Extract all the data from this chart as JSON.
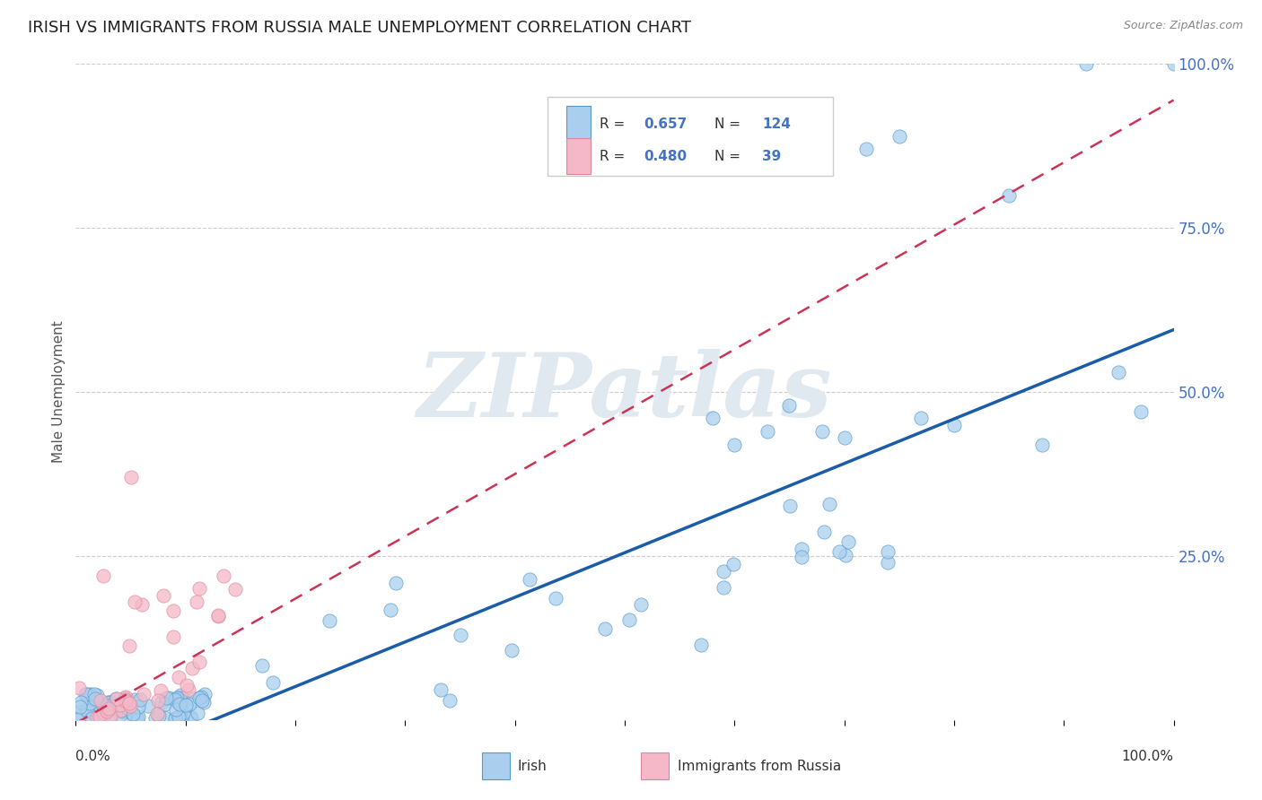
{
  "title": "IRISH VS IMMIGRANTS FROM RUSSIA MALE UNEMPLOYMENT CORRELATION CHART",
  "source": "Source: ZipAtlas.com",
  "ylabel": "Male Unemployment",
  "irish_R": 0.657,
  "irish_N": 124,
  "russia_R": 0.48,
  "russia_N": 39,
  "legend_label_1": "Irish",
  "legend_label_2": "Immigrants from Russia",
  "irish_color": "#aacfee",
  "irish_edge_color": "#5599cc",
  "irish_line_color": "#1a5ca8",
  "russia_color": "#f5b8c8",
  "russia_edge_color": "#dd8899",
  "russia_line_color": "#cc3355",
  "background_color": "#ffffff",
  "grid_color": "#cccccc",
  "title_color": "#222222",
  "tick_color": "#999999",
  "right_tick_color": "#4472c4",
  "watermark_color": "#e0e8f0",
  "watermark": "ZIPatlas",
  "irish_line_slope": 0.68,
  "irish_line_intercept": -0.085,
  "russia_line_slope": 0.95,
  "russia_line_intercept": -0.005
}
